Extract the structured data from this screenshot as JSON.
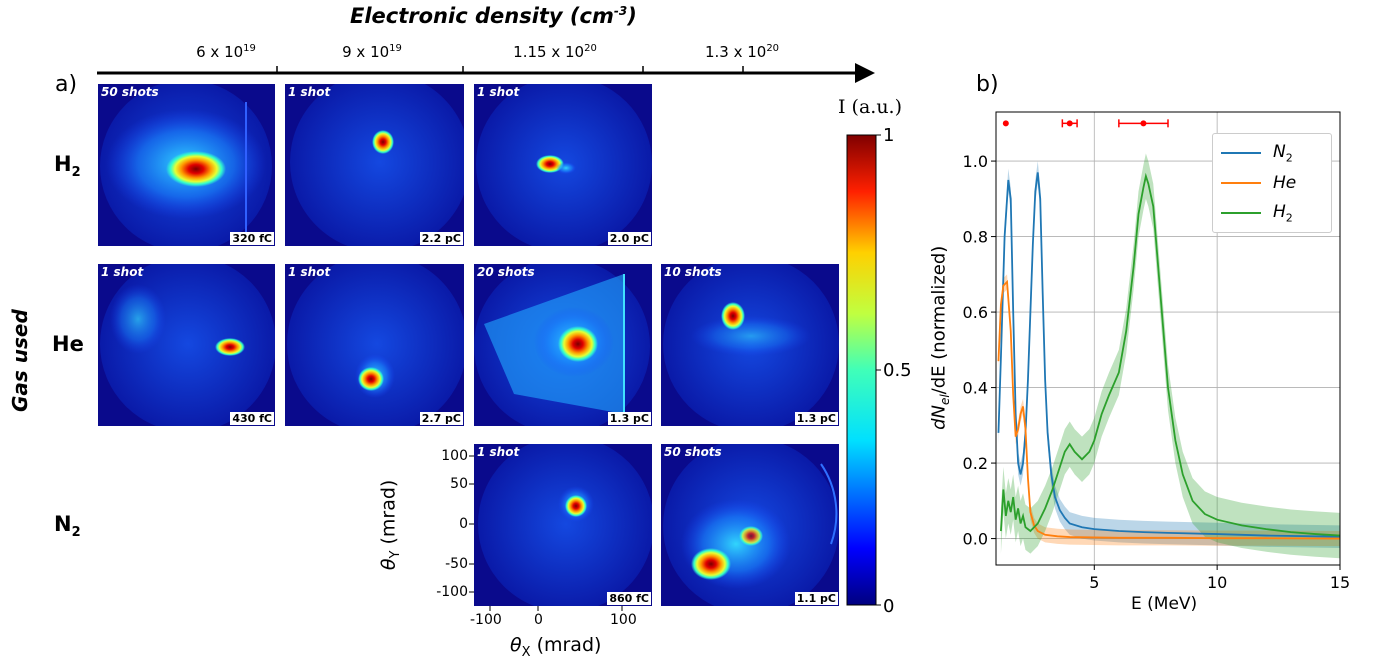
{
  "panel_a": {
    "letter": "a)",
    "title_main": "Electronic density (cm",
    "title_sup": "-3",
    "title_end": ")",
    "densities": [
      {
        "base": "6 x 10",
        "exp": "19"
      },
      {
        "base": "9 x 10",
        "exp": "19"
      },
      {
        "base": "1.15 x 10",
        "exp": "20"
      },
      {
        "base": "1.3 x 10",
        "exp": "20"
      }
    ],
    "gas_axis_label": "Gas used",
    "rows": [
      {
        "gas": "H",
        "sub": "2"
      },
      {
        "gas": "He",
        "sub": ""
      },
      {
        "gas": "N",
        "sub": "2"
      }
    ],
    "images": [
      {
        "shots": "50 shots",
        "charge": "320 fC"
      },
      {
        "shots": "1 shot",
        "charge": "2.2 pC"
      },
      {
        "shots": "1 shot",
        "charge": "2.0 pC"
      },
      {
        "shots": "1 shot",
        "charge": "430 fC"
      },
      {
        "shots": "1 shot",
        "charge": "2.7 pC"
      },
      {
        "shots": "20 shots",
        "charge": "1.3 pC"
      },
      {
        "shots": "10 shots",
        "charge": "1.3 pC"
      },
      {
        "shots": "1 shot",
        "charge": "860 fC"
      },
      {
        "shots": "50 shots",
        "charge": "1.1 pC"
      }
    ],
    "theta_y_ticks": [
      "100",
      "50",
      "0",
      "-50",
      "-100"
    ],
    "theta_x_ticks": [
      "-100",
      "0",
      "100"
    ],
    "theta_y_label": "θ",
    "theta_y_sub": "Y",
    "theta_y_unit": " (mrad)",
    "theta_x_label": "θ",
    "theta_x_sub": "X",
    "theta_x_unit": " (mrad)",
    "colorbar": {
      "label": "I (a.u.)",
      "ticks": [
        "1",
        "0.5",
        "0"
      ]
    }
  },
  "chart_data": {
    "type": "line",
    "panel_letter": "b)",
    "xlabel": "E (MeV)",
    "ylabel_main": "dN",
    "ylabel_sub": "el",
    "ylabel_end": "/dE (normalized)",
    "xlim": [
      1,
      15
    ],
    "ylim": [
      -0.07,
      1.13
    ],
    "xticks": [
      5,
      10,
      15
    ],
    "yticks": [
      0.0,
      0.2,
      0.4,
      0.6,
      0.8,
      1.0
    ],
    "grid": true,
    "legend_position": "top-right",
    "series": [
      {
        "name": "N",
        "name_sub": "2",
        "color": "#1f77b4",
        "x": [
          1.1,
          1.2,
          1.35,
          1.5,
          1.6,
          1.7,
          1.8,
          1.9,
          2.0,
          2.1,
          2.2,
          2.3,
          2.4,
          2.5,
          2.6,
          2.7,
          2.8,
          2.9,
          3.0,
          3.1,
          3.25,
          3.4,
          3.6,
          3.8,
          4.0,
          4.5,
          5.0,
          6.0,
          7.0,
          8.0,
          10.0,
          12.0,
          15.0
        ],
        "y": [
          0.28,
          0.48,
          0.8,
          0.95,
          0.9,
          0.6,
          0.33,
          0.2,
          0.17,
          0.2,
          0.28,
          0.42,
          0.6,
          0.78,
          0.92,
          0.97,
          0.9,
          0.65,
          0.42,
          0.28,
          0.17,
          0.11,
          0.075,
          0.055,
          0.04,
          0.03,
          0.025,
          0.02,
          0.017,
          0.015,
          0.012,
          0.008,
          0.005
        ],
        "band": 0.03
      },
      {
        "name": "He",
        "color": "#ff7f0e",
        "x": [
          1.1,
          1.2,
          1.3,
          1.45,
          1.6,
          1.7,
          1.8,
          1.9,
          2.0,
          2.1,
          2.2,
          2.3,
          2.4,
          2.55,
          2.7,
          3.0,
          3.5,
          4.0,
          5.0,
          6.0,
          8.0,
          10.0,
          12.0,
          15.0
        ],
        "y": [
          0.47,
          0.62,
          0.67,
          0.68,
          0.55,
          0.38,
          0.27,
          0.29,
          0.33,
          0.35,
          0.29,
          0.16,
          0.07,
          0.035,
          0.02,
          0.01,
          0.006,
          0.004,
          0.003,
          0.002,
          0.002,
          0.001,
          0.001,
          0.0
        ],
        "band": 0.02
      },
      {
        "name": "H",
        "name_sub": "2",
        "color": "#2ca02c",
        "x": [
          1.2,
          1.3,
          1.4,
          1.5,
          1.6,
          1.7,
          1.8,
          1.9,
          2.0,
          2.1,
          2.2,
          2.4,
          2.7,
          3.0,
          3.3,
          3.6,
          3.8,
          4.0,
          4.2,
          4.5,
          4.8,
          5.0,
          5.3,
          5.6,
          6.0,
          6.3,
          6.6,
          6.8,
          7.0,
          7.1,
          7.2,
          7.4,
          7.6,
          7.8,
          8.0,
          8.3,
          8.6,
          9.0,
          9.5,
          10.0,
          11.0,
          12.0,
          13.0,
          14.0,
          15.0
        ],
        "y": [
          0.02,
          0.13,
          0.06,
          0.1,
          0.07,
          0.11,
          0.05,
          0.08,
          0.04,
          0.06,
          0.03,
          0.02,
          0.04,
          0.08,
          0.13,
          0.19,
          0.23,
          0.25,
          0.23,
          0.21,
          0.23,
          0.26,
          0.33,
          0.38,
          0.44,
          0.55,
          0.72,
          0.86,
          0.93,
          0.96,
          0.94,
          0.88,
          0.72,
          0.56,
          0.4,
          0.26,
          0.17,
          0.1,
          0.065,
          0.05,
          0.035,
          0.025,
          0.017,
          0.012,
          0.008
        ],
        "band": 0.06
      }
    ],
    "error_bars": {
      "color": "#ff0000",
      "y": 1.1,
      "points": [
        {
          "x": 1.4,
          "xerr": 0
        },
        {
          "x": 4.0,
          "xerr": 0.3
        },
        {
          "x": 7.0,
          "xerr": 1.0
        }
      ]
    }
  }
}
